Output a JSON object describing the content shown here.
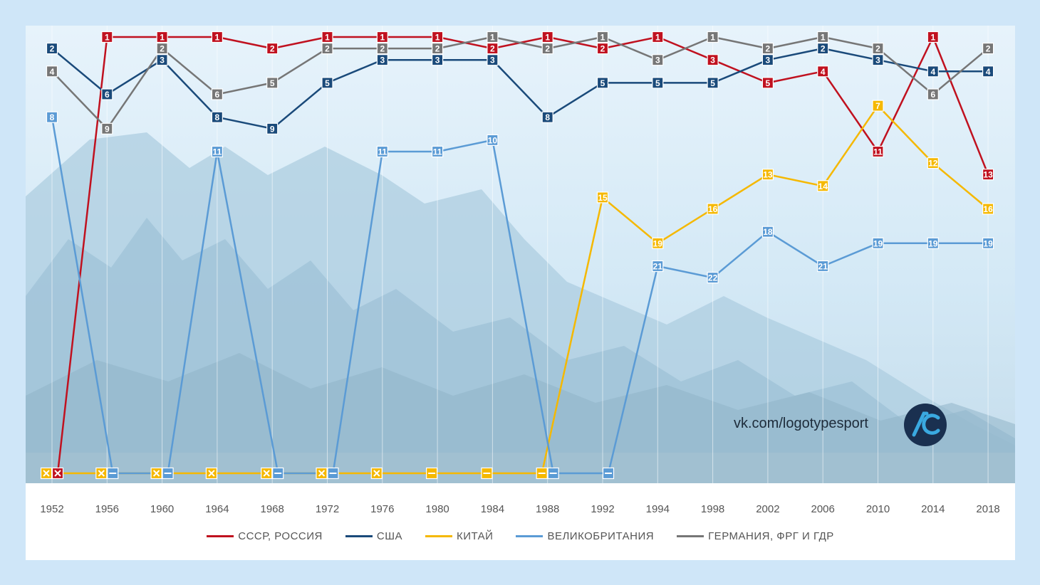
{
  "chart_data": {
    "type": "line",
    "title": "",
    "xlabel": "",
    "ylabel": "",
    "ylim": [
      1,
      39
    ],
    "y_inverted": true,
    "x": [
      "1952",
      "1956",
      "1960",
      "1964",
      "1968",
      "1972",
      "1976",
      "1980",
      "1984",
      "1988",
      "1992",
      "1994",
      "1998",
      "2002",
      "2006",
      "2010",
      "2014",
      "2018"
    ],
    "series": [
      {
        "name": "СССР, РОССИЯ",
        "color": "#c0111f",
        "values": [
          "x",
          "1",
          "1",
          "1",
          "2",
          "1",
          "1",
          "1",
          "2",
          "1",
          "2",
          "1",
          "3",
          "5",
          "4",
          "11",
          "1",
          "13"
        ]
      },
      {
        "name": "США",
        "color": "#1a4a7a",
        "values": [
          "2",
          "6",
          "3",
          "8",
          "9",
          "5",
          "3",
          "3",
          "3",
          "8",
          "5",
          "5",
          "5",
          "3",
          "2",
          "3",
          "4",
          "4"
        ]
      },
      {
        "name": "КИТАЙ",
        "color": "#f5b800",
        "values": [
          "x",
          "x",
          "x",
          "x",
          "x",
          "x",
          "x",
          "–",
          "–",
          "–",
          "15",
          "19",
          "16",
          "13",
          "14",
          "7",
          "12",
          "16"
        ]
      },
      {
        "name": "ВЕЛИКОБРИТАНИЯ",
        "color": "#5b9bd5",
        "values": [
          "8",
          "–",
          "–",
          "11",
          "–",
          "–",
          "11",
          "11",
          "10",
          "–",
          "–",
          "21",
          "22",
          "18",
          "21",
          "19",
          "19",
          "19"
        ]
      },
      {
        "name": "ГЕРМАНИЯ, ФРГ И ГДР",
        "color": "#767676",
        "values": [
          "4",
          "9",
          "2",
          "6",
          "5",
          "2",
          "2",
          "2",
          "1",
          "2",
          "1",
          "3",
          "1",
          "2",
          "1",
          "2",
          "6",
          "2"
        ]
      }
    ]
  },
  "watermark": "vk.com/logotypesport",
  "logo_text": "ЛС"
}
